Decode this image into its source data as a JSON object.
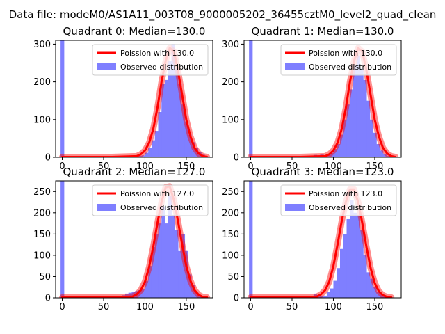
{
  "suptitle": "Data file: modeM0/AS1A11_003T08_9000005202_36455cztM0_level2_quad_clean",
  "colors": {
    "hist": "#7f7fff",
    "model": "#ff0000",
    "axis": "#000000",
    "background": "#ffffff"
  },
  "chart_data": [
    {
      "type": "histogram",
      "title": "Quadrant 0: Median=130.0",
      "median": 130.0,
      "xlim": [
        -8,
        182
      ],
      "ylim": [
        0,
        310
      ],
      "xticks": [
        0,
        50,
        100,
        150
      ],
      "yticks": [
        0,
        100,
        200,
        300
      ],
      "legend": {
        "location": "top-right",
        "model_label": "Poission with 130.0",
        "hist_label": "Observed distribution"
      },
      "bin_width": 4.4,
      "bins": [
        [
          -2,
          310
        ],
        [
          76,
          3
        ],
        [
          80,
          4
        ],
        [
          84,
          2
        ],
        [
          88,
          3
        ],
        [
          92,
          4
        ],
        [
          96,
          5
        ],
        [
          100,
          12
        ],
        [
          104,
          25
        ],
        [
          108,
          45
        ],
        [
          112,
          70
        ],
        [
          116,
          120
        ],
        [
          120,
          195
        ],
        [
          124,
          205
        ],
        [
          128,
          255
        ],
        [
          132,
          300
        ],
        [
          136,
          235
        ],
        [
          140,
          195
        ],
        [
          144,
          140
        ],
        [
          148,
          95
        ],
        [
          152,
          60
        ],
        [
          156,
          40
        ],
        [
          160,
          25
        ],
        [
          164,
          14
        ],
        [
          168,
          7
        ],
        [
          172,
          3
        ]
      ],
      "model_curve": [
        [
          0,
          1
        ],
        [
          60,
          1
        ],
        [
          90,
          3
        ],
        [
          95,
          8
        ],
        [
          100,
          18
        ],
        [
          105,
          38
        ],
        [
          110,
          75
        ],
        [
          115,
          130
        ],
        [
          120,
          200
        ],
        [
          125,
          255
        ],
        [
          130,
          290
        ],
        [
          135,
          280
        ],
        [
          140,
          230
        ],
        [
          145,
          165
        ],
        [
          150,
          100
        ],
        [
          155,
          55
        ],
        [
          160,
          25
        ],
        [
          165,
          10
        ],
        [
          170,
          3
        ],
        [
          175,
          1
        ]
      ]
    },
    {
      "type": "histogram",
      "title": "Quadrant 1: Median=130.0",
      "median": 130.0,
      "xlim": [
        -8,
        182
      ],
      "ylim": [
        0,
        310
      ],
      "xticks": [
        0,
        50,
        100,
        150
      ],
      "yticks": [
        0,
        100,
        200,
        300
      ],
      "legend": {
        "location": "top-right",
        "model_label": "Poission with 130.0",
        "hist_label": "Observed distribution"
      },
      "bin_width": 4.4,
      "bins": [
        [
          -2,
          310
        ],
        [
          72,
          4
        ],
        [
          76,
          6
        ],
        [
          80,
          5
        ],
        [
          84,
          7
        ],
        [
          88,
          5
        ],
        [
          92,
          8
        ],
        [
          96,
          12
        ],
        [
          100,
          22
        ],
        [
          104,
          35
        ],
        [
          108,
          60
        ],
        [
          112,
          100
        ],
        [
          116,
          140
        ],
        [
          120,
          180
        ],
        [
          124,
          245
        ],
        [
          128,
          270
        ],
        [
          132,
          235
        ],
        [
          136,
          205
        ],
        [
          140,
          150
        ],
        [
          144,
          100
        ],
        [
          148,
          65
        ],
        [
          152,
          35
        ],
        [
          156,
          18
        ],
        [
          160,
          8
        ],
        [
          164,
          4
        ]
      ],
      "model_curve": [
        [
          0,
          1
        ],
        [
          60,
          1
        ],
        [
          90,
          3
        ],
        [
          95,
          8
        ],
        [
          100,
          18
        ],
        [
          105,
          38
        ],
        [
          110,
          75
        ],
        [
          115,
          130
        ],
        [
          120,
          200
        ],
        [
          125,
          255
        ],
        [
          130,
          290
        ],
        [
          135,
          280
        ],
        [
          140,
          230
        ],
        [
          145,
          165
        ],
        [
          150,
          100
        ],
        [
          155,
          55
        ],
        [
          160,
          25
        ],
        [
          165,
          10
        ],
        [
          170,
          3
        ],
        [
          175,
          1
        ]
      ]
    },
    {
      "type": "histogram",
      "title": "Quadrant 2: Median=127.0",
      "median": 127.0,
      "xlim": [
        -8,
        182
      ],
      "ylim": [
        0,
        275
      ],
      "xticks": [
        0,
        50,
        100,
        150
      ],
      "yticks": [
        0,
        50,
        100,
        150,
        200,
        250
      ],
      "legend": {
        "location": "top-right",
        "model_label": "Poission with 127.0",
        "hist_label": "Observed distribution"
      },
      "bin_width": 4.4,
      "bins": [
        [
          -2,
          275
        ],
        [
          40,
          2
        ],
        [
          48,
          2
        ],
        [
          56,
          3
        ],
        [
          64,
          4
        ],
        [
          72,
          6
        ],
        [
          76,
          10
        ],
        [
          80,
          12
        ],
        [
          84,
          14
        ],
        [
          88,
          16
        ],
        [
          92,
          18
        ],
        [
          96,
          20
        ],
        [
          100,
          40
        ],
        [
          104,
          75
        ],
        [
          108,
          120
        ],
        [
          112,
          150
        ],
        [
          116,
          175
        ],
        [
          120,
          215
        ],
        [
          124,
          175
        ],
        [
          128,
          240
        ],
        [
          132,
          195
        ],
        [
          136,
          160
        ],
        [
          140,
          110
        ],
        [
          144,
          150
        ],
        [
          148,
          110
        ],
        [
          152,
          55
        ],
        [
          156,
          30
        ],
        [
          160,
          12
        ],
        [
          164,
          6
        ]
      ],
      "model_curve": [
        [
          0,
          1
        ],
        [
          60,
          1
        ],
        [
          85,
          3
        ],
        [
          90,
          8
        ],
        [
          95,
          18
        ],
        [
          100,
          38
        ],
        [
          105,
          72
        ],
        [
          110,
          120
        ],
        [
          115,
          175
        ],
        [
          120,
          225
        ],
        [
          125,
          260
        ],
        [
          130,
          262
        ],
        [
          135,
          230
        ],
        [
          140,
          180
        ],
        [
          145,
          125
        ],
        [
          150,
          75
        ],
        [
          155,
          40
        ],
        [
          160,
          18
        ],
        [
          165,
          7
        ],
        [
          170,
          2
        ],
        [
          175,
          1
        ]
      ]
    },
    {
      "type": "histogram",
      "title": "Quadrant 3: Median=123.0",
      "median": 123.0,
      "xlim": [
        -8,
        182
      ],
      "ylim": [
        0,
        275
      ],
      "xticks": [
        0,
        50,
        100,
        150
      ],
      "yticks": [
        0,
        50,
        100,
        150,
        200,
        250
      ],
      "legend": {
        "location": "top-right",
        "model_label": "Poission with 123.0",
        "hist_label": "Observed distribution"
      },
      "bin_width": 4.4,
      "bins": [
        [
          -2,
          275
        ],
        [
          76,
          8
        ],
        [
          80,
          6
        ],
        [
          84,
          5
        ],
        [
          88,
          5
        ],
        [
          92,
          14
        ],
        [
          96,
          22
        ],
        [
          100,
          40
        ],
        [
          104,
          70
        ],
        [
          108,
          115
        ],
        [
          112,
          150
        ],
        [
          116,
          185
        ],
        [
          120,
          230
        ],
        [
          124,
          200
        ],
        [
          128,
          195
        ],
        [
          132,
          160
        ],
        [
          136,
          100
        ],
        [
          140,
          60
        ],
        [
          144,
          45
        ],
        [
          148,
          25
        ],
        [
          152,
          15
        ],
        [
          156,
          8
        ],
        [
          160,
          4
        ]
      ],
      "model_curve": [
        [
          0,
          1
        ],
        [
          60,
          1
        ],
        [
          80,
          3
        ],
        [
          85,
          8
        ],
        [
          90,
          18
        ],
        [
          95,
          38
        ],
        [
          100,
          75
        ],
        [
          105,
          125
        ],
        [
          110,
          180
        ],
        [
          115,
          225
        ],
        [
          120,
          255
        ],
        [
          125,
          255
        ],
        [
          130,
          225
        ],
        [
          135,
          175
        ],
        [
          140,
          120
        ],
        [
          145,
          70
        ],
        [
          150,
          35
        ],
        [
          155,
          15
        ],
        [
          160,
          6
        ],
        [
          165,
          2
        ],
        [
          170,
          1
        ]
      ]
    }
  ]
}
